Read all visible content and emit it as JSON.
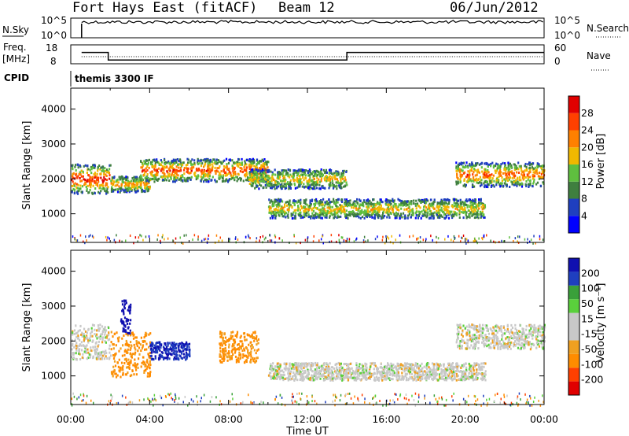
{
  "header": {
    "station": "Fort Hays East (fitACF)",
    "beam": "Beam 12",
    "date": "06/Jun/2012"
  },
  "noise_panel": {
    "left_label": "N.Sky",
    "right_label": "N.Search",
    "left_ticks": [
      "10^5",
      "10^0"
    ],
    "right_ticks": [
      "10^5",
      "10^0"
    ]
  },
  "freq_panel": {
    "left_label_1": "Freq.",
    "left_label_2": "[MHz]",
    "right_label": "Nave",
    "left_ticks": [
      "18",
      "8"
    ],
    "right_ticks": [
      "60",
      "0"
    ]
  },
  "cpid_panel": {
    "label": "CPID",
    "value": "themis 3300 IF"
  },
  "colors": {
    "power": [
      "#0000ff",
      "#1f3fbf",
      "#3f7f3f",
      "#5fbf3f",
      "#f0b800",
      "#ff8000",
      "#ff4000",
      "#e00000"
    ],
    "velocity": [
      "#e00000",
      "#ff4000",
      "#ff8c00",
      "#f0a020",
      "#c8c8c8",
      "#c8c8c8",
      "#5ad03c",
      "#3aa03a",
      "#1f3fbf",
      "#1010b0"
    ]
  },
  "chart_data": [
    {
      "type": "heatmap",
      "panel": "power",
      "xlabel": "",
      "ylabel": "Slant Range [km]",
      "xlim_hours": [
        0,
        24
      ],
      "ylim": [
        180,
        4600
      ],
      "yticks": [
        "1000",
        "2000",
        "3000",
        "4000"
      ],
      "colorbar_label": "Power [dB]",
      "colorbar_ticks": [
        "4",
        "8",
        "12",
        "16",
        "20",
        "24",
        "28"
      ],
      "colorbar_range": [
        0,
        30
      ],
      "bands": [
        {
          "t": [
            0,
            2
          ],
          "r": [
            1600,
            2450
          ],
          "intensity": 0.85
        },
        {
          "t": [
            2,
            4
          ],
          "r": [
            1650,
            2100
          ],
          "intensity": 0.6
        },
        {
          "t": [
            3.5,
            10
          ],
          "r": [
            1950,
            2600
          ],
          "intensity": 0.75
        },
        {
          "t": [
            9,
            14
          ],
          "r": [
            1750,
            2300
          ],
          "intensity": 0.5
        },
        {
          "t": [
            10,
            21
          ],
          "r": [
            900,
            1450
          ],
          "intensity": 0.5
        },
        {
          "t": [
            19.5,
            24
          ],
          "r": [
            1800,
            2500
          ],
          "intensity": 0.7
        }
      ]
    },
    {
      "type": "heatmap",
      "panel": "velocity",
      "xlabel": "Time UT",
      "ylabel": "Slant Range [km]",
      "xlim_hours": [
        0,
        24
      ],
      "ylim": [
        180,
        4600
      ],
      "xticks": [
        "00:00",
        "04:00",
        "08:00",
        "12:00",
        "16:00",
        "20:00",
        "00:00"
      ],
      "yticks": [
        "1000",
        "2000",
        "3000",
        "4000"
      ],
      "colorbar_label": "Velocity [m s⁻¹]",
      "colorbar_ticks": [
        "200",
        "100",
        "50",
        "15",
        "-15",
        "-50",
        "-100",
        "-200"
      ],
      "colorbar_range": [
        -250,
        250
      ],
      "features": [
        {
          "t": [
            0,
            2
          ],
          "r": [
            1500,
            2500
          ],
          "velocity": 0
        },
        {
          "t": [
            2,
            4
          ],
          "r": [
            1000,
            2300
          ],
          "velocity": -60
        },
        {
          "t": [
            2.5,
            3
          ],
          "r": [
            2200,
            3200
          ],
          "velocity": 220
        },
        {
          "t": [
            4,
            6
          ],
          "r": [
            1500,
            2000
          ],
          "velocity": 200
        },
        {
          "t": [
            7.5,
            9.5
          ],
          "r": [
            1400,
            2300
          ],
          "velocity": -60
        },
        {
          "t": [
            10,
            21
          ],
          "r": [
            900,
            1400
          ],
          "velocity": 0
        },
        {
          "t": [
            19.5,
            24
          ],
          "r": [
            1800,
            2500
          ],
          "velocity": 0
        }
      ]
    }
  ],
  "noise_series": {
    "hours_start": 0.55,
    "level": 0.8
  },
  "freq_series": [
    {
      "t": [
        0.55,
        1.9
      ],
      "freq": 14
    },
    {
      "t": [
        1.9,
        14.0
      ],
      "freq": 10
    },
    {
      "t": [
        14.0,
        24
      ],
      "freq": 14
    }
  ]
}
